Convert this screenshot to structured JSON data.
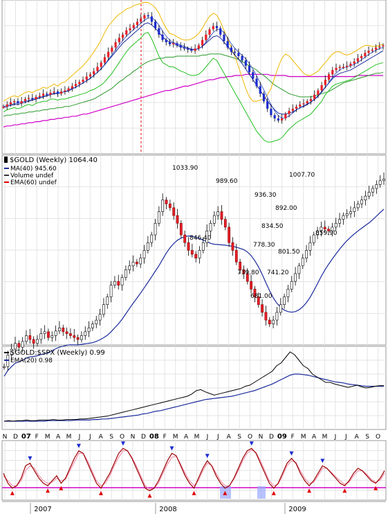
{
  "colors": {
    "up": "#e8202a",
    "down": "#1c2bcf",
    "candle_body": "#000000",
    "ma_blue": "#1a2a9c",
    "ma_fast": "#2140c0",
    "bb_upper": "#f0b800",
    "bb_lower": "#22c020",
    "long_ma": "#d000c8",
    "ema_green": "#2a9a2a",
    "grid": "#e3e3e3",
    "dashed": "#e00000",
    "osc": "#9a0000",
    "osc_sig": "#f080a0",
    "osc_line": "#d000c8",
    "osc_fill": "#9aa8ff"
  },
  "top_panel": {
    "candles": [
      33,
      35,
      37,
      38,
      36,
      38,
      40,
      41,
      40,
      42,
      43,
      45,
      44,
      46,
      47,
      45,
      47,
      48,
      50,
      52,
      54,
      56,
      58,
      61,
      63,
      66,
      70,
      74,
      79,
      84,
      88,
      93,
      97,
      100,
      104,
      106,
      109,
      112,
      115,
      118,
      117,
      112,
      106,
      100,
      95,
      93,
      91,
      92,
      90,
      88,
      87,
      86,
      85,
      87,
      90,
      95,
      100,
      105,
      108,
      106,
      100,
      94,
      88,
      84,
      83,
      80,
      76,
      71,
      65,
      59,
      52,
      45,
      38,
      31,
      25,
      22,
      20,
      22,
      26,
      29,
      31,
      33,
      35,
      36,
      38,
      40,
      44,
      48,
      53,
      58,
      63,
      67,
      69,
      70,
      70,
      71,
      73,
      75,
      78,
      80,
      83,
      85,
      86,
      88,
      89,
      90
    ],
    "upper_band": [
      38,
      40,
      42,
      43,
      42,
      44,
      46,
      47,
      46,
      48,
      49,
      51,
      50,
      52,
      54,
      52,
      55,
      56,
      59,
      62,
      65,
      68,
      71,
      75,
      79,
      84,
      89,
      95,
      102,
      108,
      112,
      116,
      119,
      121,
      124,
      125,
      127,
      128,
      129,
      130,
      130,
      128,
      125,
      120,
      112,
      106,
      101,
      100,
      98,
      96,
      95,
      95,
      96,
      98,
      101,
      106,
      112,
      117,
      120,
      118,
      112,
      104,
      96,
      88,
      80,
      70,
      60,
      50,
      42,
      38,
      38,
      39,
      40,
      44,
      50,
      60,
      70,
      78,
      82,
      80,
      76,
      72,
      68,
      64,
      62,
      62,
      64,
      66,
      70,
      74,
      78,
      82,
      84,
      84,
      82,
      81,
      82,
      84,
      86,
      88,
      90,
      90,
      89,
      89,
      90,
      91
    ],
    "lower_band": [
      28,
      30,
      31,
      32,
      31,
      32,
      34,
      35,
      34,
      36,
      37,
      38,
      38,
      40,
      40,
      39,
      40,
      40,
      41,
      42,
      43,
      44,
      45,
      46,
      48,
      49,
      51,
      53,
      56,
      60,
      64,
      69,
      74,
      79,
      84,
      88,
      91,
      94,
      97,
      101,
      102,
      96,
      88,
      80,
      74,
      72,
      70,
      70,
      68,
      66,
      65,
      63,
      62,
      62,
      63,
      66,
      70,
      74,
      78,
      76,
      70,
      64,
      58,
      52,
      46,
      40,
      34,
      28,
      22,
      16,
      10,
      6,
      2,
      0,
      0,
      1,
      2,
      4,
      8,
      12,
      15,
      18,
      20,
      22,
      24,
      26,
      30,
      34,
      38,
      44,
      48,
      52,
      54,
      55,
      56,
      57,
      58,
      60,
      62,
      64,
      66,
      68,
      70,
      72,
      73,
      74
    ],
    "ma_blue": [
      32,
      33,
      34,
      35,
      35,
      36,
      37,
      38,
      39,
      40,
      41,
      42,
      43,
      44,
      45,
      45,
      46,
      47,
      48,
      50,
      51,
      53,
      55,
      57,
      59,
      62,
      65,
      68,
      72,
      76,
      80,
      84,
      88,
      92,
      95,
      98,
      101,
      104,
      107,
      110,
      111,
      109,
      106,
      102,
      98,
      95,
      93,
      92,
      90,
      89,
      88,
      87,
      86,
      86,
      87,
      89,
      92,
      95,
      98,
      99,
      97,
      93,
      89,
      85,
      81,
      77,
      73,
      68,
      63,
      58,
      53,
      48,
      43,
      38,
      34,
      30,
      27,
      26,
      26,
      27,
      28,
      30,
      32,
      33,
      35,
      37,
      40,
      43,
      47,
      51,
      55,
      59,
      62,
      64,
      65,
      66,
      67,
      69,
      71,
      73,
      75,
      77,
      79,
      81,
      83,
      85
    ],
    "ema_green": [
      24,
      25,
      25,
      26,
      26,
      27,
      27,
      28,
      28,
      29,
      29,
      30,
      30,
      31,
      31,
      32,
      32,
      33,
      33,
      34,
      35,
      36,
      37,
      38,
      39,
      40,
      42,
      44,
      46,
      48,
      50,
      53,
      56,
      58,
      61,
      63,
      66,
      68,
      71,
      73,
      75,
      76,
      77,
      78,
      78,
      79,
      79,
      79,
      80,
      80,
      80,
      80,
      80,
      80,
      80,
      81,
      81,
      82,
      82,
      82,
      82,
      81,
      80,
      79,
      78,
      77,
      75,
      73,
      71,
      69,
      67,
      64,
      62,
      59,
      56,
      53,
      51,
      49,
      47,
      45,
      44,
      43,
      42,
      42,
      42,
      42,
      43,
      44,
      45,
      46,
      47,
      49,
      51,
      53,
      55,
      56,
      57,
      58,
      59,
      60,
      61,
      62,
      63,
      64,
      64,
      65
    ],
    "long_ma": [
      14,
      15,
      15,
      16,
      16,
      17,
      17,
      18,
      18,
      19,
      19,
      20,
      20,
      21,
      21,
      22,
      22,
      23,
      23,
      24,
      24,
      25,
      26,
      26,
      27,
      28,
      29,
      30,
      31,
      32,
      33,
      34,
      35,
      36,
      37,
      38,
      39,
      40,
      41,
      42,
      43,
      44,
      45,
      46,
      47,
      48,
      48,
      49,
      50,
      51,
      52,
      52,
      53,
      54,
      55,
      56,
      57,
      58,
      58,
      59,
      60,
      60,
      61,
      61,
      62,
      62,
      62,
      63,
      63,
      63,
      63,
      63,
      63,
      63,
      62,
      62,
      62,
      62,
      62,
      61,
      61,
      61,
      61,
      61,
      61,
      61,
      61,
      61,
      61,
      61,
      61,
      61,
      61,
      61,
      61,
      61,
      61,
      61,
      62,
      62,
      62,
      62,
      62,
      62,
      62,
      62
    ]
  },
  "price_panel": {
    "symbol_label": "$GOLD (Weekly) 1064.40",
    "legend": [
      {
        "label": "MA(40) 945.60",
        "color": "#1a2a9c"
      },
      {
        "label": "Volume undef",
        "color": "#333333"
      },
      {
        "label": "EMA(60) undef",
        "color": "#e00000"
      }
    ],
    "ylim": [
      600,
      1090
    ],
    "closes": [
      580,
      610,
      625,
      640,
      630,
      645,
      660,
      650,
      640,
      650,
      665,
      670,
      655,
      660,
      672,
      680,
      670,
      665,
      660,
      655,
      650,
      660,
      670,
      680,
      690,
      700,
      715,
      740,
      760,
      790,
      800,
      790,
      810,
      830,
      840,
      850,
      845,
      860,
      880,
      900,
      920,
      950,
      980,
      1010,
      1000,
      990,
      970,
      950,
      920,
      900,
      880,
      870,
      860,
      880,
      900,
      930,
      950,
      970,
      980,
      960,
      940,
      900,
      880,
      850,
      830,
      820,
      800,
      780,
      760,
      740,
      720,
      700,
      690,
      700,
      720,
      740,
      760,
      780,
      800,
      820,
      840,
      860,
      880,
      900,
      920,
      930,
      940,
      935,
      930,
      940,
      950,
      960,
      970,
      975,
      980,
      990,
      1000,
      1010,
      1020,
      1030,
      1040,
      1050,
      1060,
      1064
    ],
    "annotations": [
      {
        "text": "1033.90"
      },
      {
        "text": "846.40"
      },
      {
        "text": "989.60"
      },
      {
        "text": "936.30"
      },
      {
        "text": "834.50"
      },
      {
        "text": "778.30"
      },
      {
        "text": "739.80"
      },
      {
        "text": "741.20"
      },
      {
        "text": "681.00"
      },
      {
        "text": "892.00"
      },
      {
        "text": "801.50"
      },
      {
        "text": "1007.70"
      },
      {
        "text": "859.90"
      }
    ]
  },
  "ratio_panel": {
    "symbol_label": "$GOLD:$SPX (Weekly) 0.99",
    "legend": [
      {
        "label": "EMA(20) 0.98",
        "color": "#1a2a9c"
      }
    ],
    "ylim": [
      0.2,
      1.7
    ],
    "ratio": [
      0.35,
      0.36,
      0.35,
      0.36,
      0.36,
      0.37,
      0.36,
      0.36,
      0.37,
      0.37,
      0.37,
      0.38,
      0.37,
      0.37,
      0.38,
      0.38,
      0.38,
      0.39,
      0.39,
      0.4,
      0.41,
      0.42,
      0.43,
      0.44,
      0.46,
      0.48,
      0.5,
      0.52,
      0.54,
      0.56,
      0.58,
      0.6,
      0.62,
      0.64,
      0.66,
      0.68,
      0.7,
      0.72,
      0.74,
      0.76,
      0.78,
      0.8,
      0.84,
      0.9,
      0.92,
      0.88,
      0.85,
      0.82,
      0.84,
      0.86,
      0.88,
      0.9,
      0.92,
      0.94,
      0.98,
      1.0,
      1.05,
      1.1,
      1.15,
      1.2,
      1.25,
      1.35,
      1.4,
      1.5,
      1.6,
      1.55,
      1.45,
      1.35,
      1.3,
      1.2,
      1.15,
      1.1,
      1.05,
      1.05,
      1.02,
      1.0,
      0.98,
      0.96,
      0.98,
      1.0,
      0.97,
      0.95,
      0.96,
      0.98,
      0.99,
      0.99
    ],
    "ema": [
      0.35,
      0.35,
      0.35,
      0.35,
      0.35,
      0.35,
      0.35,
      0.35,
      0.35,
      0.35,
      0.36,
      0.36,
      0.36,
      0.36,
      0.36,
      0.36,
      0.37,
      0.37,
      0.37,
      0.37,
      0.38,
      0.38,
      0.39,
      0.39,
      0.4,
      0.41,
      0.42,
      0.43,
      0.44,
      0.45,
      0.46,
      0.48,
      0.49,
      0.51,
      0.53,
      0.54,
      0.56,
      0.58,
      0.6,
      0.62,
      0.64,
      0.66,
      0.68,
      0.7,
      0.72,
      0.74,
      0.75,
      0.76,
      0.77,
      0.78,
      0.79,
      0.8,
      0.82,
      0.84,
      0.86,
      0.88,
      0.9,
      0.93,
      0.96,
      0.99,
      1.02,
      1.06,
      1.1,
      1.14,
      1.18,
      1.2,
      1.2,
      1.19,
      1.18,
      1.16,
      1.14,
      1.12,
      1.1,
      1.08,
      1.06,
      1.05,
      1.04,
      1.02,
      1.01,
      1.0,
      0.99,
      0.98,
      0.98,
      0.98,
      0.98,
      0.98
    ]
  },
  "month_axis": {
    "labels": [
      "N",
      "D",
      "07",
      "F",
      "M",
      "A",
      "M",
      "J",
      "J",
      "A",
      "S",
      "O",
      "N",
      "D",
      "08",
      "F",
      "M",
      "A",
      "M",
      "J",
      "J",
      "A",
      "S",
      "O",
      "N",
      "D",
      "09",
      "F",
      "M",
      "A",
      "M",
      "J",
      "J",
      "A",
      "S",
      "O"
    ]
  },
  "oscillator": {
    "values": [
      40,
      20,
      10,
      15,
      30,
      55,
      60,
      45,
      30,
      20,
      15,
      25,
      35,
      20,
      30,
      50,
      70,
      85,
      80,
      60,
      40,
      20,
      10,
      25,
      40,
      60,
      80,
      90,
      85,
      70,
      50,
      30,
      10,
      5,
      10,
      25,
      45,
      65,
      80,
      75,
      55,
      35,
      20,
      10,
      30,
      50,
      65,
      55,
      35,
      20,
      10,
      15,
      30,
      50,
      70,
      85,
      90,
      80,
      60,
      40,
      20,
      10,
      20,
      40,
      60,
      70,
      60,
      40,
      25,
      15,
      25,
      40,
      55,
      50,
      40,
      30,
      20,
      15,
      25,
      40,
      50,
      45,
      35,
      25,
      20,
      30,
      45
    ],
    "signal": [
      35,
      25,
      15,
      15,
      25,
      45,
      55,
      50,
      35,
      25,
      20,
      22,
      30,
      25,
      28,
      45,
      62,
      80,
      80,
      65,
      45,
      25,
      15,
      20,
      35,
      55,
      72,
      85,
      85,
      72,
      55,
      35,
      15,
      8,
      10,
      20,
      40,
      58,
      72,
      74,
      58,
      40,
      25,
      15,
      25,
      45,
      60,
      56,
      40,
      25,
      15,
      15,
      28,
      45,
      65,
      80,
      87,
      82,
      65,
      45,
      25,
      15,
      18,
      35,
      55,
      65,
      62,
      45,
      30,
      20,
      22,
      35,
      50,
      50,
      42,
      33,
      25,
      18,
      22,
      35,
      45,
      45,
      38,
      28,
      22,
      26,
      40
    ]
  },
  "year_axis": {
    "labels": [
      "2007",
      "2008",
      "2009"
    ]
  }
}
